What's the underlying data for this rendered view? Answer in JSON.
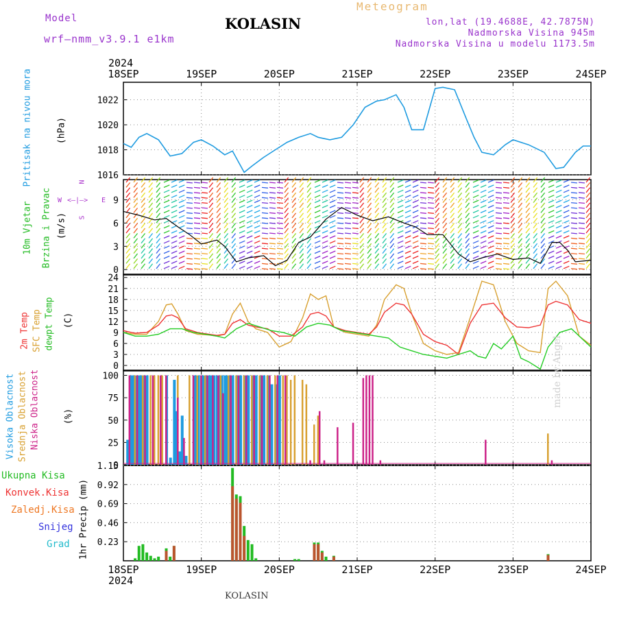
{
  "header": {
    "model_label": "Model",
    "model_name": "wrf—nmm_v3.9.1  e1km",
    "station": "KOLASIN",
    "product": "Meteogram",
    "lonlat": "lon,lat (19.4688E, 42.7875N)",
    "elevation": "Nadmorska Visina 945m",
    "model_elevation": "Nadmorska Visina u modelu 1173.5m",
    "year_top": "2024",
    "year_bottom": "2024",
    "footer_station": "KOLASIN",
    "credit": "made by Angel"
  },
  "colors": {
    "pressure": "#1e9be0",
    "wind_label": "#22bb22",
    "wind_dir_label": "#aa33cc",
    "temp2m": "#ee3333",
    "sfc": "#d8a030",
    "dewpt": "#22cc22",
    "high_cloud": "#1e9be0",
    "mid_cloud": "#d8a030",
    "low_cloud": "#cc2288",
    "total_precip": "#22bb22",
    "conv_precip": "#ee3333",
    "frozen_precip": "#ee7722",
    "snow": "#3333dd",
    "hail": "#22bbcc",
    "header_purple": "#9933cc",
    "header_orange": "#e8b870"
  },
  "axis": {
    "days": [
      "18SEP",
      "19SEP",
      "20SEP",
      "21SEP",
      "22SEP",
      "23SEP",
      "24SEP"
    ]
  },
  "chart_data": [
    {
      "type": "line",
      "title": "",
      "ylabel_main": "Pritisak na nivou mora",
      "ylabel_unit": "(hPa)",
      "yticks": [
        "1016",
        "1018",
        "1020",
        "1022"
      ],
      "ylim": [
        1016,
        1023.4
      ],
      "grid": true,
      "series": [
        {
          "name": "Pritisak na nivou mora",
          "x": [
            0,
            0.1,
            0.2,
            0.3,
            0.45,
            0.6,
            0.75,
            0.9,
            1.0,
            1.15,
            1.3,
            1.4,
            1.55,
            1.65,
            1.8,
            1.95,
            2.1,
            2.25,
            2.4,
            2.5,
            2.65,
            2.8,
            2.95,
            3.1,
            3.25,
            3.35,
            3.5,
            3.6,
            3.7,
            3.85,
            4.0,
            4.1,
            4.25,
            4.4,
            4.5,
            4.6,
            4.75,
            4.9,
            5.0,
            5.2,
            5.4,
            5.55,
            5.65,
            5.8,
            5.9,
            6.0
          ],
          "values": [
            1018.5,
            1018.2,
            1019.0,
            1019.3,
            1018.8,
            1017.5,
            1017.7,
            1018.6,
            1018.8,
            1018.3,
            1017.6,
            1017.9,
            1016.2,
            1016.7,
            1017.4,
            1018.0,
            1018.6,
            1019.0,
            1019.3,
            1019.0,
            1018.8,
            1019.0,
            1020.0,
            1021.4,
            1021.9,
            1022.0,
            1022.4,
            1021.4,
            1019.6,
            1019.6,
            1022.9,
            1023.0,
            1022.8,
            1020.5,
            1019.0,
            1017.8,
            1017.6,
            1018.4,
            1018.8,
            1018.4,
            1017.8,
            1016.5,
            1016.6,
            1017.8,
            1018.3,
            1018.3
          ]
        }
      ]
    },
    {
      "type": "line",
      "title": "",
      "ylabel_main": "10m Vjetar",
      "ylabel_main2": "Brzina i Pravac",
      "ylabel_unit": "(m/s)",
      "direction_key": [
        "N",
        "W",
        "<—|—>",
        "E",
        "S"
      ],
      "yticks": [
        "0",
        "3",
        "6",
        "9"
      ],
      "ylim": [
        -0.6,
        11.6
      ],
      "grid": true,
      "series": [
        {
          "name": "Brzina",
          "x": [
            0,
            0.2,
            0.4,
            0.55,
            0.7,
            0.85,
            1.0,
            1.2,
            1.3,
            1.45,
            1.6,
            1.8,
            1.95,
            2.1,
            2.25,
            2.4,
            2.6,
            2.8,
            3.0,
            3.2,
            3.4,
            3.6,
            3.75,
            3.9,
            4.1,
            4.3,
            4.45,
            4.6,
            4.8,
            5.0,
            5.2,
            5.35,
            5.5,
            5.6,
            5.7,
            5.8,
            6.0
          ],
          "values": [
            7.5,
            7.0,
            6.4,
            6.6,
            5.5,
            4.5,
            3.3,
            3.8,
            3.0,
            1.0,
            1.5,
            1.8,
            0.5,
            1.2,
            3.5,
            4.2,
            6.5,
            8.0,
            7.0,
            6.3,
            6.8,
            6.0,
            5.5,
            4.5,
            4.5,
            2.0,
            1.0,
            1.5,
            2.0,
            1.3,
            1.5,
            0.8,
            3.5,
            3.5,
            2.5,
            1.0,
            1.2
          ]
        }
      ]
    },
    {
      "type": "line",
      "title": "",
      "ylabel_main": "2m Temp",
      "ylabel_main2": "SFC Temp",
      "ylabel_main3": "dewpt Temp",
      "ylabel_unit": "(C)",
      "yticks": [
        "0",
        "3",
        "6",
        "9",
        "12",
        "15",
        "18",
        "21",
        "24"
      ],
      "ylim": [
        -1.3,
        24.7
      ],
      "grid": true,
      "series": [
        {
          "name": "2m Temp",
          "x": [
            0,
            0.15,
            0.3,
            0.45,
            0.55,
            0.62,
            0.7,
            0.8,
            0.95,
            1.1,
            1.2,
            1.3,
            1.4,
            1.5,
            1.6,
            1.7,
            1.85,
            2.0,
            2.15,
            2.3,
            2.4,
            2.5,
            2.6,
            2.7,
            2.85,
            3.0,
            3.15,
            3.25,
            3.35,
            3.5,
            3.6,
            3.7,
            3.85,
            4.0,
            4.15,
            4.3,
            4.45,
            4.6,
            4.75,
            4.9,
            5.05,
            5.2,
            5.35,
            5.45,
            5.55,
            5.7,
            5.85,
            6.0
          ],
          "values": [
            9.5,
            8.8,
            9.0,
            11.0,
            13.5,
            13.8,
            13.0,
            10.0,
            9.0,
            8.5,
            8.2,
            8.5,
            11.5,
            12.5,
            11.0,
            10.5,
            10.0,
            8.0,
            8.0,
            10.5,
            14.0,
            14.5,
            13.5,
            10.5,
            9.5,
            9.0,
            8.5,
            10.5,
            14.5,
            17.0,
            16.5,
            14.0,
            8.5,
            6.5,
            5.5,
            3.0,
            11.5,
            16.5,
            17.0,
            13.0,
            10.5,
            10.3,
            11.0,
            16.5,
            17.5,
            16.5,
            12.5,
            11.5
          ]
        },
        {
          "name": "SFC Temp",
          "x": [
            0,
            0.15,
            0.3,
            0.45,
            0.55,
            0.62,
            0.7,
            0.8,
            0.95,
            1.1,
            1.2,
            1.3,
            1.4,
            1.5,
            1.6,
            1.7,
            1.85,
            2.0,
            2.15,
            2.3,
            2.4,
            2.5,
            2.6,
            2.7,
            2.85,
            3.0,
            3.15,
            3.25,
            3.35,
            3.5,
            3.6,
            3.7,
            3.85,
            4.0,
            4.15,
            4.3,
            4.45,
            4.6,
            4.75,
            4.9,
            5.05,
            5.2,
            5.35,
            5.45,
            5.55,
            5.7,
            5.85,
            6.0
          ],
          "values": [
            9.0,
            8.5,
            8.5,
            12.0,
            16.5,
            16.8,
            14.0,
            9.5,
            8.5,
            8.3,
            8.0,
            8.5,
            14.0,
            17.0,
            12.0,
            10.0,
            9.0,
            5.0,
            6.5,
            13.0,
            19.5,
            18.0,
            19.0,
            10.5,
            9.0,
            8.5,
            8.0,
            11.0,
            18.0,
            22.0,
            21.0,
            14.0,
            6.0,
            4.0,
            3.0,
            3.5,
            13.0,
            23.0,
            22.0,
            12.0,
            6.0,
            4.0,
            3.5,
            21.0,
            23.0,
            19.0,
            8.0,
            5.5
          ]
        },
        {
          "name": "dewpt Temp",
          "x": [
            0,
            0.15,
            0.3,
            0.45,
            0.6,
            0.75,
            0.9,
            1.05,
            1.2,
            1.3,
            1.45,
            1.6,
            1.75,
            1.9,
            2.05,
            2.2,
            2.35,
            2.5,
            2.65,
            2.8,
            2.95,
            3.1,
            3.25,
            3.4,
            3.55,
            3.7,
            3.85,
            4.0,
            4.15,
            4.3,
            4.45,
            4.55,
            4.65,
            4.75,
            4.85,
            5.0,
            5.1,
            5.2,
            5.35,
            5.45,
            5.6,
            5.75,
            5.9,
            6.0
          ],
          "values": [
            9.0,
            8.0,
            8.0,
            8.5,
            10.0,
            10.0,
            9.0,
            8.5,
            8.0,
            7.5,
            10.0,
            11.5,
            10.5,
            9.5,
            9.0,
            8.0,
            10.5,
            11.5,
            11.0,
            9.5,
            9.0,
            8.5,
            8.0,
            7.5,
            5.0,
            4.0,
            3.0,
            2.5,
            2.0,
            3.0,
            4.0,
            2.5,
            2.0,
            6.0,
            4.5,
            8.0,
            2.0,
            1.0,
            -1.0,
            5.0,
            9.0,
            10.0,
            7.0,
            5.0
          ]
        }
      ]
    },
    {
      "type": "bar",
      "title": "",
      "ylabel_high": "Visoka Oblacnost",
      "ylabel_mid": "Srednja Oblacnost",
      "ylabel_low": "Niska Oblacnost",
      "ylabel_unit": "(%)",
      "yticks": [
        "0",
        "25",
        "50",
        "75",
        "100"
      ],
      "ylim": [
        0,
        105
      ],
      "grid": true,
      "series": [
        {
          "name": "Visoka Oblacnost",
          "x": [
            0.05,
            0.1,
            0.13,
            0.17,
            0.2,
            0.23,
            0.27,
            0.3,
            0.55,
            0.6,
            0.65,
            0.68,
            0.72,
            0.75,
            0.8,
            0.9,
            0.93,
            0.96,
            1.0,
            1.03,
            1.06,
            1.1,
            1.13,
            1.16,
            1.2,
            1.23,
            1.26,
            1.3,
            1.33,
            1.36,
            1.4,
            1.45,
            1.5,
            1.55,
            1.6,
            1.65,
            1.7,
            1.75,
            1.8,
            1.85,
            1.9,
            1.95,
            2.0
          ],
          "values": [
            28,
            100,
            100,
            100,
            100,
            100,
            100,
            100,
            100,
            8,
            95,
            60,
            15,
            55,
            10,
            100,
            100,
            100,
            100,
            100,
            100,
            100,
            100,
            100,
            100,
            100,
            100,
            100,
            100,
            100,
            100,
            100,
            100,
            100,
            100,
            100,
            100,
            100,
            100,
            100,
            90,
            90,
            100
          ]
        },
        {
          "name": "Srednja Oblacnost",
          "x": [
            0.15,
            0.25,
            0.35,
            0.4,
            0.45,
            0.5,
            0.7,
            0.85,
            0.95,
            1.05,
            1.25,
            1.35,
            1.45,
            1.55,
            1.65,
            1.75,
            1.85,
            1.95,
            2.05,
            2.1,
            2.15,
            2.2,
            2.3,
            2.35,
            2.45,
            2.5,
            5.45
          ],
          "values": [
            100,
            100,
            100,
            100,
            100,
            100,
            100,
            100,
            100,
            100,
            100,
            100,
            100,
            100,
            100,
            100,
            100,
            100,
            100,
            100,
            95,
            100,
            95,
            90,
            45,
            55,
            35
          ]
        },
        {
          "name": "Niska Oblacnost",
          "x": [
            0.08,
            0.18,
            0.28,
            0.38,
            0.48,
            0.55,
            0.7,
            0.78,
            0.9,
            1.0,
            1.08,
            1.15,
            1.22,
            1.28,
            1.38,
            1.48,
            1.58,
            1.68,
            1.78,
            1.88,
            1.98,
            2.08,
            2.4,
            2.52,
            2.58,
            2.75,
            2.95,
            3.08,
            3.12,
            3.16,
            3.2,
            3.3,
            4.65,
            5.5
          ],
          "values": [
            100,
            100,
            100,
            100,
            100,
            100,
            75,
            30,
            100,
            100,
            100,
            100,
            100,
            80,
            100,
            100,
            100,
            100,
            100,
            100,
            100,
            100,
            5,
            60,
            5,
            42,
            47,
            97,
            100,
            100,
            100,
            5,
            28,
            5
          ]
        }
      ]
    },
    {
      "type": "bar",
      "title": "",
      "ylabel_unit": "1hr Precip (mm)",
      "legend": [
        "Ukupna Kisa",
        "Konvek.Kisa",
        "Zaledj.Kisa",
        "Snijeg",
        "Grad"
      ],
      "yticks": [
        "0.23",
        "0.46",
        "0.69",
        "0.92",
        "1.15"
      ],
      "ylim": [
        0,
        1.15
      ],
      "grid": true,
      "series": [
        {
          "name": "Ukupna Kisa",
          "x": [
            0.15,
            0.2,
            0.25,
            0.3,
            0.35,
            0.4,
            0.45,
            0.55,
            0.6,
            0.65,
            1.4,
            1.45,
            1.5,
            1.55,
            1.6,
            1.65,
            1.7,
            2.2,
            2.25,
            2.45,
            2.5,
            2.55,
            2.6,
            2.7,
            5.45
          ],
          "values": [
            0.03,
            0.18,
            0.2,
            0.1,
            0.06,
            0.03,
            0.05,
            0.15,
            0.05,
            0.18,
            1.12,
            0.8,
            0.78,
            0.42,
            0.25,
            0.2,
            0.03,
            0.02,
            0.02,
            0.22,
            0.22,
            0.12,
            0.05,
            0.06,
            0.08
          ]
        },
        {
          "name": "Konvek.Kisa",
          "x": [
            0.55,
            0.65,
            1.4,
            1.45,
            1.5,
            1.55,
            2.45,
            2.5,
            2.55,
            2.7,
            5.45
          ],
          "values": [
            0.12,
            0.18,
            0.9,
            0.75,
            0.7,
            0.3,
            0.2,
            0.2,
            0.1,
            0.05,
            0.07
          ]
        }
      ]
    }
  ]
}
